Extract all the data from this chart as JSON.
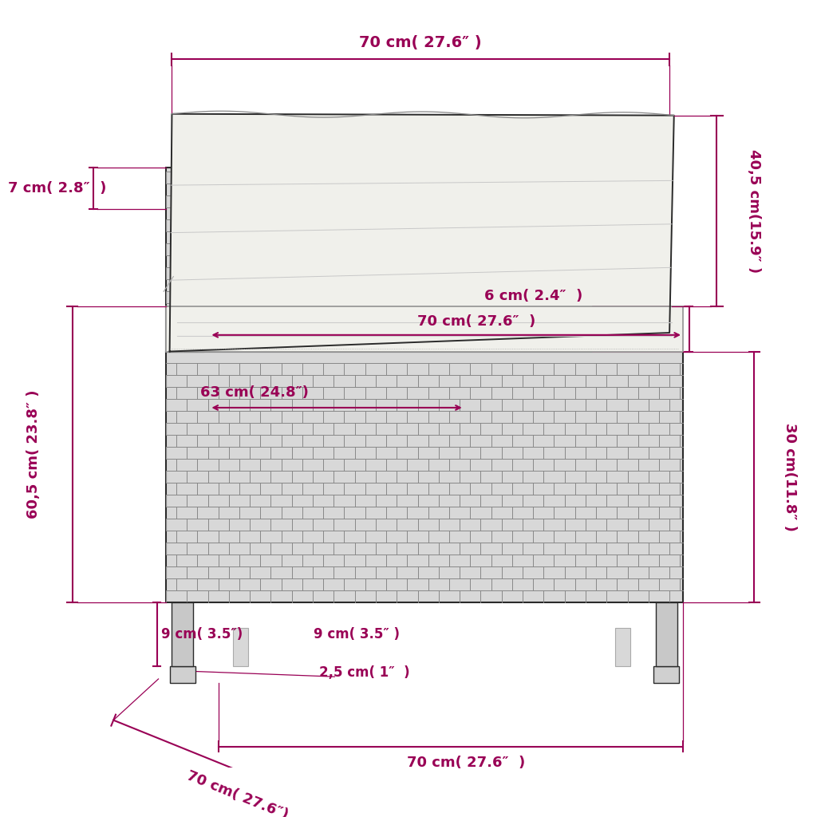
{
  "bg_color": "#ffffff",
  "line_color": "#2a2a2a",
  "dim_color": "#990055",
  "rattan_color": "#d8d8d8",
  "rattan_line": "#888888",
  "cushion_color": "#f0f0eb",
  "cushion_edge": "#aaaaaa",
  "fig_size": [
    10.24,
    10.24
  ],
  "dpi": 100,
  "measurements": {
    "top_width": "70 cm( 27.6″ )",
    "back_height": "40,5 cm(15.9″ )",
    "cap_thick": "7 cm( 2.8″  )",
    "total_height": "60,5 cm( 23.8″ )",
    "seat_depth": "63 cm( 24.8″)",
    "seat_width": "70 cm( 27.6″  )",
    "cush_thick": "6 cm( 2.4″  )",
    "body_height": "30 cm(11.8″ )",
    "leg_left": "9 cm( 3.5″)",
    "leg_right": "9 cm( 3.5″ )",
    "leg_plat": "2,5 cm( 1″  )",
    "depth_diag": "70 cm( 27.6″)",
    "depth_horiz": "70 cm( 27.6″  )"
  }
}
